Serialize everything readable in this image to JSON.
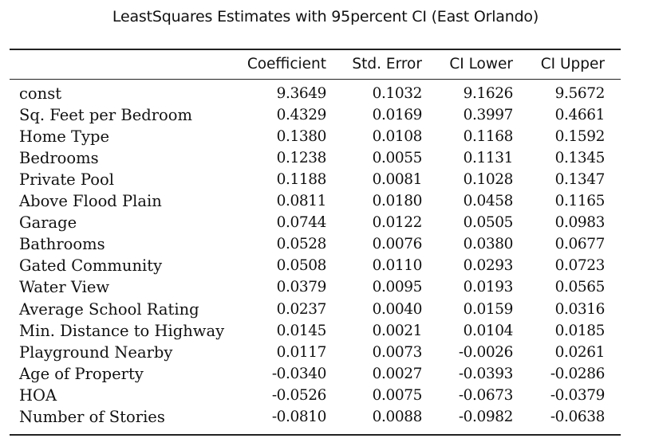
{
  "caption": "LeastSquares Estimates with 95percent CI (East Orlando)",
  "columns": [
    "",
    "Coefficient",
    "Std. Error",
    "CI Lower",
    "CI Upper"
  ],
  "rows": [
    {
      "label": "const",
      "values": [
        "9.3649",
        "0.1032",
        "9.1626",
        "9.5672"
      ]
    },
    {
      "label": "Sq. Feet per Bedroom",
      "values": [
        "0.4329",
        "0.0169",
        "0.3997",
        "0.4661"
      ]
    },
    {
      "label": "Home Type",
      "values": [
        "0.1380",
        "0.0108",
        "0.1168",
        "0.1592"
      ]
    },
    {
      "label": "Bedrooms",
      "values": [
        "0.1238",
        "0.0055",
        "0.1131",
        "0.1345"
      ]
    },
    {
      "label": "Private Pool",
      "values": [
        "0.1188",
        "0.0081",
        "0.1028",
        "0.1347"
      ]
    },
    {
      "label": "Above Flood Plain",
      "values": [
        "0.0811",
        "0.0180",
        "0.0458",
        "0.1165"
      ]
    },
    {
      "label": "Garage",
      "values": [
        "0.0744",
        "0.0122",
        "0.0505",
        "0.0983"
      ]
    },
    {
      "label": "Bathrooms",
      "values": [
        "0.0528",
        "0.0076",
        "0.0380",
        "0.0677"
      ]
    },
    {
      "label": "Gated Community",
      "values": [
        "0.0508",
        "0.0110",
        "0.0293",
        "0.0723"
      ]
    },
    {
      "label": "Water View",
      "values": [
        "0.0379",
        "0.0095",
        "0.0193",
        "0.0565"
      ]
    },
    {
      "label": "Average School Rating",
      "values": [
        "0.0237",
        "0.0040",
        "0.0159",
        "0.0316"
      ]
    },
    {
      "label": "Min. Distance to Highway",
      "values": [
        "0.0145",
        "0.0021",
        "0.0104",
        "0.0185"
      ]
    },
    {
      "label": "Playground Nearby",
      "values": [
        "0.0117",
        "0.0073",
        "-0.0026",
        "0.0261"
      ]
    },
    {
      "label": "Age of Property",
      "values": [
        "-0.0340",
        "0.0027",
        "-0.0393",
        "-0.0286"
      ]
    },
    {
      "label": "HOA",
      "values": [
        "-0.0526",
        "0.0075",
        "-0.0673",
        "-0.0379"
      ]
    },
    {
      "label": "Number of Stories",
      "values": [
        "-0.0810",
        "0.0088",
        "-0.0982",
        "-0.0638"
      ]
    }
  ]
}
